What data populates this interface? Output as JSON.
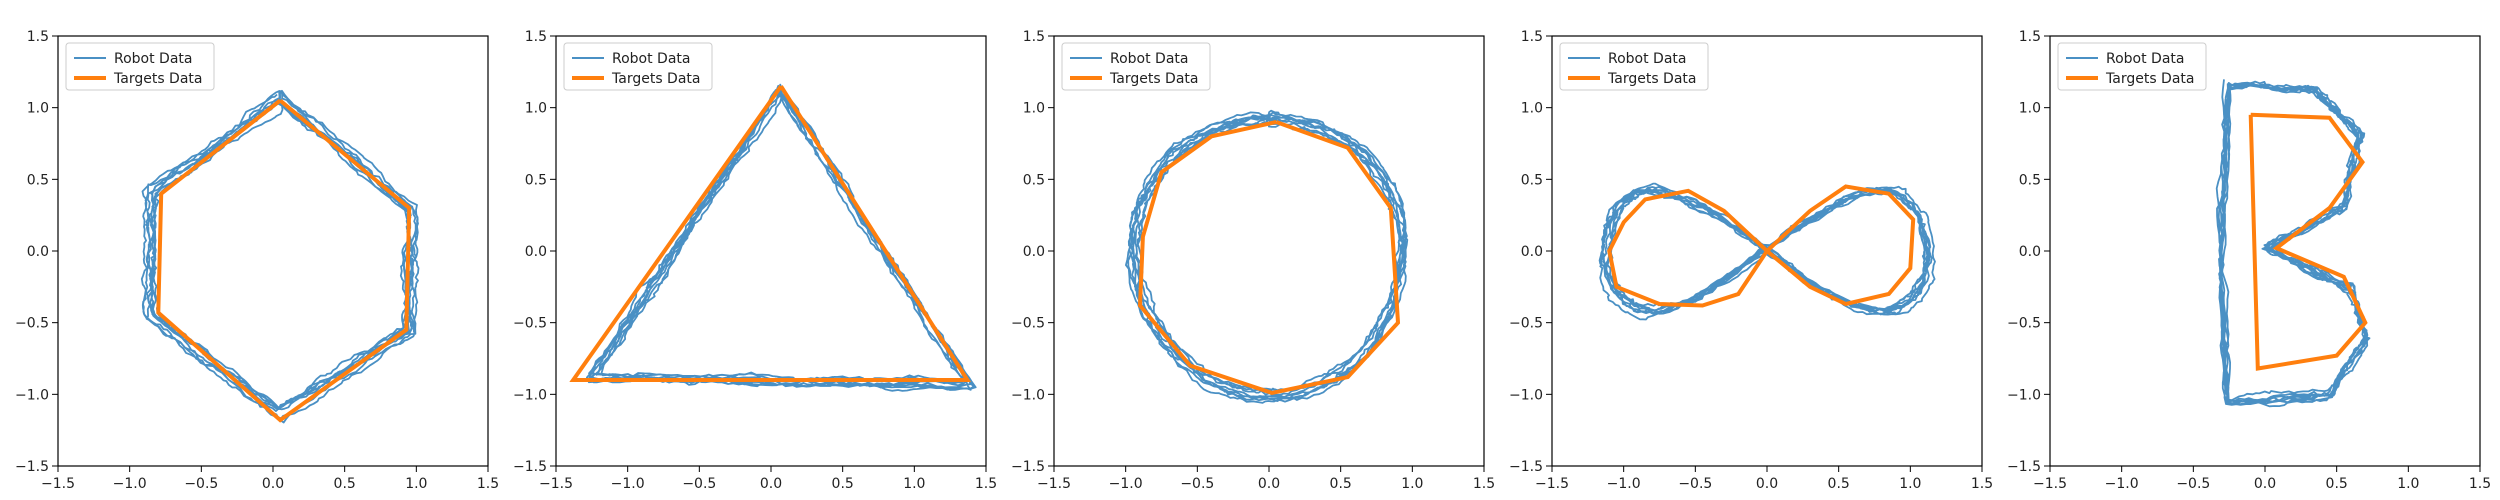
{
  "chart_data": [
    {
      "type": "line",
      "xlim": [
        -1.5,
        1.5
      ],
      "ylim": [
        -1.5,
        1.5
      ],
      "xticks": [
        "−1.5",
        "−1.0",
        "−0.5",
        "0.0",
        "0.5",
        "1.0",
        "1.5"
      ],
      "yticks": [
        "−1.5",
        "−1.0",
        "−0.5",
        "0.0",
        "0.5",
        "1.0",
        "1.5"
      ],
      "grid": false,
      "legend_position": "top-left",
      "series": [
        {
          "name": "Robot Data",
          "color": "#4a90c4",
          "shape": "hexagon",
          "noisy": true
        },
        {
          "name": "Targets Data",
          "color": "#ff7f0e",
          "points": [
            [
              0.05,
              1.05
            ],
            [
              0.95,
              0.3
            ],
            [
              0.93,
              -0.55
            ],
            [
              0.05,
              -1.18
            ],
            [
              -0.8,
              -0.43
            ],
            [
              -0.78,
              0.4
            ],
            [
              0.05,
              1.05
            ]
          ]
        }
      ]
    },
    {
      "type": "line",
      "xlim": [
        -1.5,
        1.5
      ],
      "ylim": [
        -1.5,
        1.5
      ],
      "xticks": [
        "−1.5",
        "−1.0",
        "−0.5",
        "0.0",
        "0.5",
        "1.0",
        "1.5"
      ],
      "yticks": [
        "−1.5",
        "−1.0",
        "−0.5",
        "0.0",
        "0.5",
        "1.0",
        "1.5"
      ],
      "grid": false,
      "legend_position": "top-left",
      "series": [
        {
          "name": "Robot Data",
          "color": "#4a90c4",
          "shape": "triangle",
          "noisy": true
        },
        {
          "name": "Targets Data",
          "color": "#ff7f0e",
          "points": [
            [
              0.07,
              1.15
            ],
            [
              1.37,
              -0.9
            ],
            [
              -1.38,
              -0.9
            ],
            [
              0.07,
              1.15
            ]
          ]
        }
      ]
    },
    {
      "type": "line",
      "xlim": [
        -1.5,
        1.5
      ],
      "ylim": [
        -1.5,
        1.5
      ],
      "xticks": [
        "−1.5",
        "−1.0",
        "−0.5",
        "0.0",
        "0.5",
        "1.0",
        "1.5"
      ],
      "yticks": [
        "−1.5",
        "−1.0",
        "−0.5",
        "0.0",
        "0.5",
        "1.0",
        "1.5"
      ],
      "grid": false,
      "legend_position": "top-left",
      "series": [
        {
          "name": "Robot Data",
          "color": "#4a90c4",
          "shape": "circle",
          "noisy": true
        },
        {
          "name": "Targets Data",
          "color": "#ff7f0e",
          "points": [
            [
              0.05,
              0.9
            ],
            [
              0.55,
              0.72
            ],
            [
              0.85,
              0.3
            ],
            [
              0.9,
              -0.5
            ],
            [
              0.55,
              -0.88
            ],
            [
              0.02,
              -0.99
            ],
            [
              -0.55,
              -0.8
            ],
            [
              -0.9,
              -0.38
            ],
            [
              -0.88,
              0.1
            ],
            [
              -0.75,
              0.55
            ],
            [
              -0.4,
              0.8
            ],
            [
              0.05,
              0.9
            ]
          ]
        }
      ]
    },
    {
      "type": "line",
      "xlim": [
        -1.5,
        1.5
      ],
      "ylim": [
        -1.5,
        1.5
      ],
      "xticks": [
        "−1.5",
        "−1.0",
        "−0.5",
        "0.0",
        "0.5",
        "1.0",
        "1.5"
      ],
      "yticks": [
        "−1.5",
        "−1.0",
        "−0.5",
        "0.0",
        "0.5",
        "1.0",
        "1.5"
      ],
      "grid": false,
      "legend_position": "top-left",
      "series": [
        {
          "name": "Robot Data",
          "color": "#4a90c4",
          "shape": "infinity",
          "noisy": true
        },
        {
          "name": "Targets Data",
          "color": "#ff7f0e",
          "points": [
            [
              0.0,
              0.0
            ],
            [
              0.3,
              0.28
            ],
            [
              0.55,
              0.45
            ],
            [
              0.85,
              0.4
            ],
            [
              1.02,
              0.22
            ],
            [
              1.0,
              -0.12
            ],
            [
              0.85,
              -0.3
            ],
            [
              0.55,
              -0.37
            ],
            [
              0.3,
              -0.25
            ],
            [
              0.0,
              0.0
            ],
            [
              -0.3,
              0.28
            ],
            [
              -0.55,
              0.42
            ],
            [
              -0.85,
              0.36
            ],
            [
              -1.0,
              0.2
            ],
            [
              -1.1,
              0.0
            ],
            [
              -1.05,
              -0.25
            ],
            [
              -0.75,
              -0.37
            ],
            [
              -0.45,
              -0.38
            ],
            [
              -0.2,
              -0.3
            ],
            [
              0.0,
              0.0
            ]
          ]
        }
      ]
    },
    {
      "type": "line",
      "xlim": [
        -1.5,
        1.5
      ],
      "ylim": [
        -1.5,
        1.5
      ],
      "xticks": [
        "−1.5",
        "−1.0",
        "−0.5",
        "0.0",
        "0.5",
        "1.0",
        "1.5"
      ],
      "yticks": [
        "−1.5",
        "−1.0",
        "−0.5",
        "0.0",
        "0.5",
        "1.0",
        "1.5"
      ],
      "grid": false,
      "legend_position": "top-left",
      "series": [
        {
          "name": "Robot Data",
          "color": "#4a90c4",
          "shape": "letterB",
          "noisy": true
        },
        {
          "name": "Targets Data",
          "color": "#ff7f0e",
          "points": [
            [
              -0.1,
              0.95
            ],
            [
              0.45,
              0.93
            ],
            [
              0.68,
              0.62
            ],
            [
              0.45,
              0.3
            ],
            [
              0.08,
              0.02
            ],
            [
              0.55,
              -0.18
            ],
            [
              0.7,
              -0.5
            ],
            [
              0.5,
              -0.73
            ],
            [
              -0.05,
              -0.82
            ],
            [
              -0.1,
              0.95
            ]
          ]
        }
      ]
    }
  ]
}
